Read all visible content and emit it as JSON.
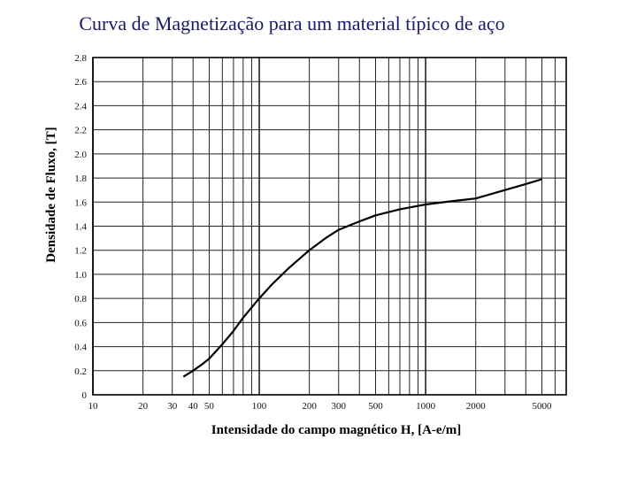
{
  "chart_data": {
    "type": "line",
    "title": "Curva de Magnetização para um material típico de aço",
    "xlabel": "Intensidade do campo magnético H, [A-e/m]",
    "ylabel": "Densidade de Fluxo, [T]",
    "x_scale": "log",
    "xlim": [
      10,
      7000
    ],
    "ylim": [
      0,
      2.8
    ],
    "x_ticks": [
      10,
      20,
      30,
      40,
      50,
      100,
      200,
      300,
      500,
      1000,
      2000,
      5000
    ],
    "x_tick_labels": [
      "10",
      "20",
      "30",
      "40",
      "50",
      "100",
      "200",
      "300",
      "500",
      "1000",
      "2000",
      "5000"
    ],
    "y_ticks": [
      0,
      0.2,
      0.4,
      0.6,
      0.8,
      1.0,
      1.2,
      1.4,
      1.6,
      1.8,
      2.0,
      2.2,
      2.4,
      2.6,
      2.8
    ],
    "y_tick_labels": [
      "0",
      "0.2",
      "0.4",
      "0.6",
      "0.8",
      "1.0",
      "1.2",
      "1.4",
      "1.6",
      "1.8",
      "2.0",
      "2.2",
      "2.4",
      "2.6",
      "2.8"
    ],
    "grid": true,
    "series": [
      {
        "x": [
          35,
          40,
          45,
          50,
          60,
          70,
          80,
          100,
          120,
          150,
          200,
          250,
          300,
          400,
          500,
          700,
          1000,
          1500,
          2000,
          3000,
          4000,
          5000
        ],
        "y": [
          0.15,
          0.2,
          0.25,
          0.3,
          0.42,
          0.53,
          0.64,
          0.8,
          0.92,
          1.05,
          1.2,
          1.3,
          1.37,
          1.44,
          1.49,
          1.54,
          1.58,
          1.61,
          1.63,
          1.7,
          1.75,
          1.79
        ]
      }
    ]
  }
}
